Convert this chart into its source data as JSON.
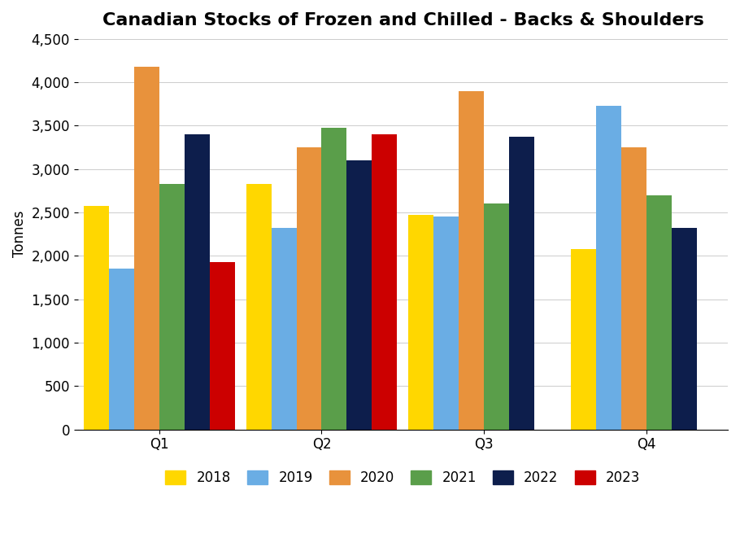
{
  "title": "Canadian Stocks of Frozen and Chilled - Backs & Shoulders",
  "ylabel": "Tonnes",
  "categories": [
    "Q1",
    "Q2",
    "Q3",
    "Q4"
  ],
  "series": {
    "2018": [
      2575,
      2825,
      2475,
      2075
    ],
    "2019": [
      1850,
      2325,
      2450,
      3725
    ],
    "2020": [
      4175,
      3250,
      3900,
      3250
    ],
    "2021": [
      2825,
      3475,
      2600,
      2700
    ],
    "2022": [
      3400,
      3100,
      3375,
      2325
    ],
    "2023": [
      1925,
      3400,
      null,
      null
    ]
  },
  "colors": {
    "2018": "#FFD700",
    "2019": "#6AADE4",
    "2020": "#E8923C",
    "2021": "#5A9E4A",
    "2022": "#0D1E4C",
    "2023": "#CC0000"
  },
  "ylim": [
    0,
    4500
  ],
  "yticks": [
    0,
    500,
    1000,
    1500,
    2000,
    2500,
    3000,
    3500,
    4000,
    4500
  ],
  "legend_order": [
    "2018",
    "2019",
    "2020",
    "2021",
    "2022",
    "2023"
  ],
  "background_color": "#ffffff",
  "title_fontsize": 16,
  "axis_fontsize": 12,
  "tick_fontsize": 12,
  "legend_fontsize": 12
}
